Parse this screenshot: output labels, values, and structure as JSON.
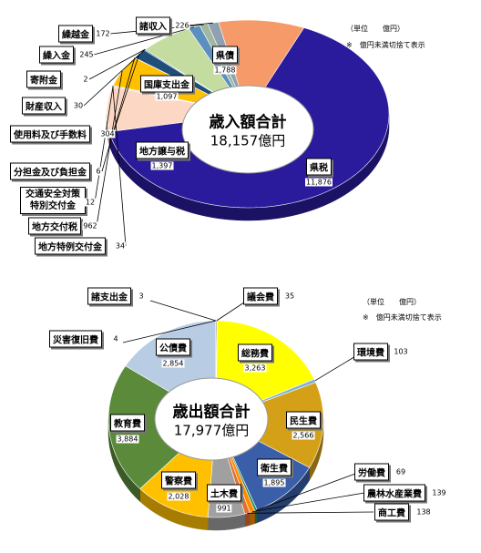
{
  "chart_data": [
    {
      "type": "pie",
      "center_text": [
        "歳入額合計",
        "18,157億円"
      ],
      "note": [
        "（単位　　億円）",
        "※　億円未満切捨て表示"
      ],
      "categories": [
        "県債",
        "県税",
        "地方譲与税",
        "地方特例交付金",
        "交通安全対策特別交付金",
        "地方交付税",
        "分担金及び負担金",
        "使用料及び手数料",
        "財産収入",
        "寄附金",
        "国庫支出金",
        "繰入金",
        "繰越金",
        "諸収入"
      ],
      "values": [
        1788,
        11876,
        1397,
        34,
        12,
        962,
        6,
        304,
        30,
        2,
        1097,
        245,
        172,
        226
      ],
      "value_labels": [
        "1,788",
        "11,876",
        "1,397",
        "34",
        "12",
        "962",
        "6",
        "304",
        "30",
        "2",
        "1,097",
        "245",
        "172",
        "226"
      ],
      "colors": [
        "#f79a6a",
        "#2a1a9c",
        "#fcd8c4",
        "#c0c0c0",
        "#808080",
        "#ffc000",
        "#404040",
        "#1f4e79",
        "#3a7a8a",
        "#999999",
        "#c4dca0",
        "#5b8fbf",
        "#a0b8a0",
        "#8fa0b0"
      ]
    },
    {
      "type": "pie",
      "center_text": [
        "歳出額合計",
        "17,977億円"
      ],
      "note": [
        "（単位　　億円）",
        "※　億円未満切捨て表示"
      ],
      "categories": [
        "議会費",
        "総務費",
        "環境費",
        "民生費",
        "衛生費",
        "労働費",
        "農林水産業費",
        "商工費",
        "土木費",
        "警察費",
        "教育費",
        "公債費",
        "災害復旧費",
        "諸支出金"
      ],
      "values": [
        35,
        3263,
        103,
        2566,
        1895,
        69,
        139,
        138,
        991,
        2028,
        3884,
        2854,
        4,
        3
      ],
      "value_labels": [
        "35",
        "3,263",
        "103",
        "2,566",
        "1,895",
        "69",
        "139",
        "138",
        "991",
        "2,028",
        "3,884",
        "2,854",
        "4",
        "3"
      ],
      "colors": [
        "#888888",
        "#ffff00",
        "#7fb0d8",
        "#d4a017",
        "#3a5fa8",
        "#2e8b57",
        "#ff8c00",
        "#e07030",
        "#a0a0a0",
        "#ffc000",
        "#5a8a3a",
        "#b8cce4",
        "#333333",
        "#666666"
      ]
    }
  ]
}
